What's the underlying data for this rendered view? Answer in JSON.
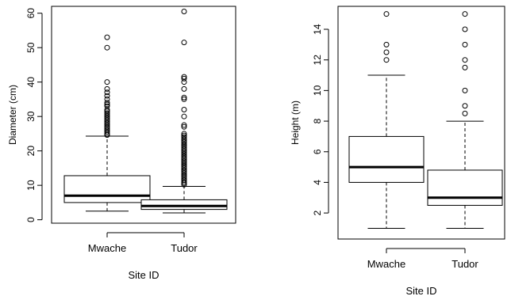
{
  "chart_data": [
    {
      "type": "box",
      "xlabel": "Site ID",
      "ylabel": "Diameter (cm)",
      "ylim": [
        -1,
        62
      ],
      "yticks": [
        0,
        10,
        20,
        30,
        40,
        50,
        60
      ],
      "categories": [
        "Mwache",
        "Tudor"
      ],
      "boxes": [
        {
          "category": "Mwache",
          "whisker_low": 2.5,
          "q1": 5,
          "median": 7,
          "q3": 12.8,
          "whisker_high": 24.3,
          "outliers": [
            24.6,
            25,
            25.5,
            26,
            26.5,
            27,
            27.5,
            28,
            28.5,
            29,
            29.5,
            30,
            30.5,
            31,
            31.5,
            32,
            33,
            33.5,
            34,
            35,
            36,
            37,
            38,
            40,
            50,
            53
          ]
        },
        {
          "category": "Tudor",
          "whisker_low": 2,
          "q1": 3,
          "median": 4,
          "q3": 5.8,
          "whisker_high": 9.7,
          "outliers": [
            10.2,
            10.6,
            11,
            11.5,
            12,
            12.5,
            13,
            13.5,
            14,
            14.5,
            15,
            15.5,
            16,
            16.5,
            17,
            17.5,
            18,
            18.5,
            19,
            19.5,
            20,
            20.5,
            21,
            21.5,
            22,
            22.5,
            23,
            23.5,
            24,
            24.5,
            25,
            27,
            27.5,
            30,
            32,
            35,
            35.5,
            38,
            40,
            41,
            41.5,
            51.5,
            60.5
          ]
        }
      ]
    },
    {
      "type": "box",
      "xlabel": "Site ID",
      "ylabel": "Height (m)",
      "ylim": [
        0.3,
        15.5
      ],
      "yticks": [
        2,
        4,
        6,
        8,
        10,
        12,
        14
      ],
      "categories": [
        "Mwache",
        "Tudor"
      ],
      "boxes": [
        {
          "category": "Mwache",
          "whisker_low": 1,
          "q1": 4,
          "median": 5,
          "q3": 7,
          "whisker_high": 11,
          "outliers": [
            12,
            12.5,
            13,
            15
          ]
        },
        {
          "category": "Tudor",
          "whisker_low": 1,
          "q1": 2.5,
          "median": 3,
          "q3": 4.8,
          "whisker_high": 8,
          "outliers": [
            8.5,
            9,
            10,
            11.5,
            12,
            13,
            14,
            15
          ]
        }
      ]
    }
  ]
}
